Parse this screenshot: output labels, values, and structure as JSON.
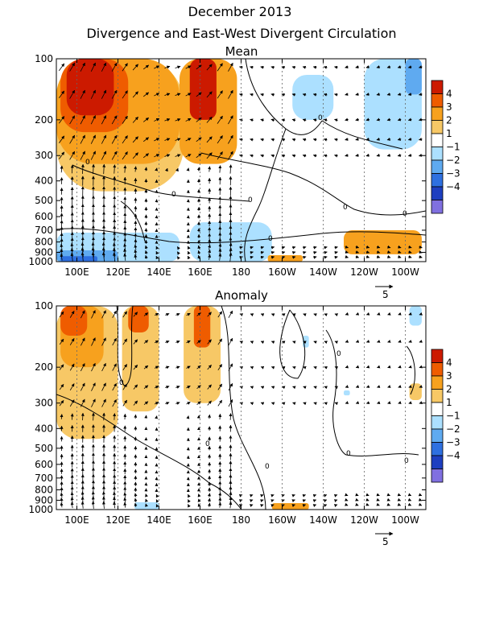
{
  "title_line1": "December 2013",
  "title_line2": "Divergence and East-West Divergent Circulation",
  "panels": [
    {
      "id": "mean",
      "title": "Mean"
    },
    {
      "id": "anomaly",
      "title": "Anomaly"
    }
  ],
  "vector_ref_label": "5",
  "contour_zero_label": "0",
  "chart_data": [
    {
      "type": "heatmap",
      "title": "Mean",
      "x_ticks": [
        "100E",
        "120E",
        "140E",
        "160E",
        "180",
        "160W",
        "140W",
        "120W",
        "100W"
      ],
      "x_tick_lon": [
        100,
        120,
        140,
        160,
        180,
        200,
        220,
        240,
        260
      ],
      "xlim": [
        90,
        270
      ],
      "y_ticks": [
        "100",
        "200",
        "300",
        "400",
        "500",
        "600",
        "700",
        "800",
        "900",
        "1000"
      ],
      "y_tick_hpa": [
        100,
        200,
        300,
        400,
        500,
        600,
        700,
        800,
        900,
        1000
      ],
      "ylim": [
        1000,
        100
      ],
      "y_scale": "log",
      "colorbar_levels": [
        -4,
        -3,
        -2,
        -1,
        1,
        2,
        3,
        4
      ],
      "colorbar_labels": [
        "4",
        "3",
        "2",
        "1",
        "−1",
        "−2",
        "−3",
        "−4"
      ],
      "colorbar_colors": [
        "#cc1a00",
        "#ef5c00",
        "#f7a11e",
        "#f7c866",
        "#ffffff",
        "#ace0ff",
        "#5faaf0",
        "#2e70e0",
        "#1e3fc0",
        "#8070e0"
      ],
      "regions": [
        {
          "color": "#f7c866",
          "lon": [
            90,
            152
          ],
          "p": [
            100,
            450
          ]
        },
        {
          "color": "#f7a11e",
          "lon": [
            90,
            150
          ],
          "p": [
            100,
            330
          ]
        },
        {
          "color": "#ef5c00",
          "lon": [
            92,
            125
          ],
          "p": [
            100,
            230
          ]
        },
        {
          "color": "#cc1a00",
          "lon": [
            95,
            118
          ],
          "p": [
            100,
            190
          ]
        },
        {
          "color": "#f7a11e",
          "lon": [
            150,
            178
          ],
          "p": [
            100,
            330
          ]
        },
        {
          "color": "#cc1a00",
          "lon": [
            155,
            168
          ],
          "p": [
            100,
            200
          ]
        },
        {
          "color": "#ace0ff",
          "lon": [
            205,
            225
          ],
          "p": [
            120,
            200
          ]
        },
        {
          "color": "#ace0ff",
          "lon": [
            240,
            268
          ],
          "p": [
            100,
            280
          ]
        },
        {
          "color": "#5faaf0",
          "lon": [
            260,
            268
          ],
          "p": [
            100,
            150
          ]
        },
        {
          "color": "#ace0ff",
          "lon": [
            90,
            150
          ],
          "p": [
            720,
            1000
          ]
        },
        {
          "color": "#5faaf0",
          "lon": [
            90,
            120
          ],
          "p": [
            880,
            1000
          ]
        },
        {
          "color": "#2e70e0",
          "lon": [
            92,
            110
          ],
          "p": [
            940,
            1000
          ]
        },
        {
          "color": "#ace0ff",
          "lon": [
            155,
            195
          ],
          "p": [
            640,
            1000
          ]
        },
        {
          "color": "#f7a11e",
          "lon": [
            230,
            268
          ],
          "p": [
            700,
            920
          ]
        },
        {
          "color": "#f7a11e",
          "lon": [
            193,
            210
          ],
          "p": [
            930,
            1000
          ]
        }
      ]
    },
    {
      "type": "heatmap",
      "title": "Anomaly",
      "x_ticks": [
        "100E",
        "120E",
        "140E",
        "160E",
        "180",
        "160W",
        "140W",
        "120W",
        "100W"
      ],
      "x_tick_lon": [
        100,
        120,
        140,
        160,
        180,
        200,
        220,
        240,
        260
      ],
      "xlim": [
        90,
        270
      ],
      "y_ticks": [
        "100",
        "200",
        "300",
        "400",
        "500",
        "600",
        "700",
        "800",
        "900",
        "1000"
      ],
      "y_tick_hpa": [
        100,
        200,
        300,
        400,
        500,
        600,
        700,
        800,
        900,
        1000
      ],
      "ylim": [
        1000,
        100
      ],
      "y_scale": "log",
      "colorbar_levels": [
        -4,
        -3,
        -2,
        -1,
        1,
        2,
        3,
        4
      ],
      "colorbar_labels": [
        "4",
        "3",
        "2",
        "1",
        "−1",
        "−2",
        "−3",
        "−4"
      ],
      "colorbar_colors": [
        "#cc1a00",
        "#ef5c00",
        "#f7a11e",
        "#f7c866",
        "#ffffff",
        "#ace0ff",
        "#5faaf0",
        "#2e70e0",
        "#1e3fc0",
        "#8070e0"
      ],
      "regions": [
        {
          "color": "#f7c866",
          "lon": [
            90,
            120
          ],
          "p": [
            100,
            450
          ]
        },
        {
          "color": "#f7a11e",
          "lon": [
            92,
            113
          ],
          "p": [
            100,
            200
          ]
        },
        {
          "color": "#ef5c00",
          "lon": [
            92,
            105
          ],
          "p": [
            100,
            140
          ]
        },
        {
          "color": "#f7c866",
          "lon": [
            122,
            140
          ],
          "p": [
            100,
            330
          ]
        },
        {
          "color": "#ef5c00",
          "lon": [
            125,
            135
          ],
          "p": [
            100,
            135
          ]
        },
        {
          "color": "#f7c866",
          "lon": [
            152,
            170
          ],
          "p": [
            100,
            300
          ]
        },
        {
          "color": "#ef5c00",
          "lon": [
            157,
            165
          ],
          "p": [
            100,
            160
          ]
        },
        {
          "color": "#ace0ff",
          "lon": [
            262,
            268
          ],
          "p": [
            100,
            125
          ]
        },
        {
          "color": "#ace0ff",
          "lon": [
            210,
            213
          ],
          "p": [
            140,
            160
          ]
        },
        {
          "color": "#ace0ff",
          "lon": [
            230,
            233
          ],
          "p": [
            260,
            275
          ]
        },
        {
          "color": "#f7c866",
          "lon": [
            262,
            268
          ],
          "p": [
            240,
            290
          ]
        },
        {
          "color": "#ace0ff",
          "lon": [
            128,
            140
          ],
          "p": [
            920,
            1000
          ]
        },
        {
          "color": "#f7a11e",
          "lon": [
            195,
            213
          ],
          "p": [
            930,
            1000
          ]
        }
      ]
    }
  ]
}
